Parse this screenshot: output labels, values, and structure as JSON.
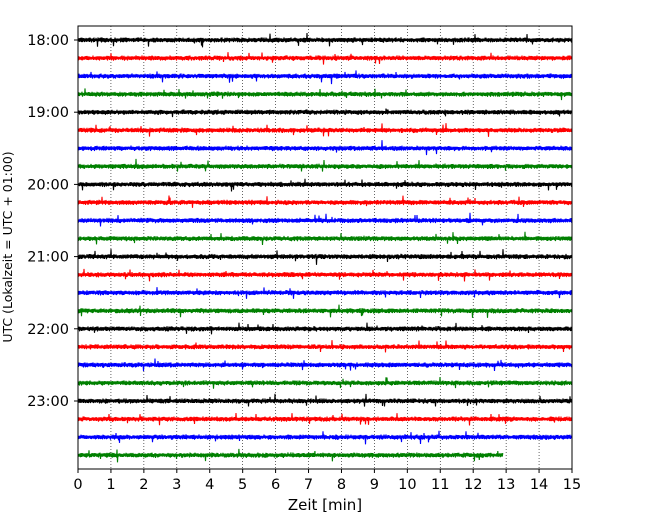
{
  "chart_data": {
    "type": "line",
    "title": "",
    "xlabel": "Zeit  [min]",
    "ylabel": "UTC (Lokalzeit = UTC + 01:00)",
    "xlim": [
      0,
      15
    ],
    "x_ticks": [
      "0",
      "1",
      "2",
      "3",
      "4",
      "5",
      "6",
      "7",
      "8",
      "9",
      "10",
      "11",
      "12",
      "13",
      "14",
      "15"
    ],
    "y_ticks": [
      "18:00",
      "19:00",
      "20:00",
      "21:00",
      "22:00",
      "23:00"
    ],
    "grid": "vertical dotted lines at each minute",
    "legend": "none",
    "colors": [
      "#000000",
      "#ff0000",
      "#0000ff",
      "#008000"
    ],
    "traces": [
      {
        "start": "18:00",
        "color": "#000000",
        "end_min": 15
      },
      {
        "start": "18:15",
        "color": "#ff0000",
        "end_min": 15
      },
      {
        "start": "18:30",
        "color": "#0000ff",
        "end_min": 15
      },
      {
        "start": "18:45",
        "color": "#008000",
        "end_min": 15
      },
      {
        "start": "19:00",
        "color": "#000000",
        "end_min": 15
      },
      {
        "start": "19:15",
        "color": "#ff0000",
        "end_min": 15
      },
      {
        "start": "19:30",
        "color": "#0000ff",
        "end_min": 15
      },
      {
        "start": "19:45",
        "color": "#008000",
        "end_min": 15
      },
      {
        "start": "20:00",
        "color": "#000000",
        "end_min": 15
      },
      {
        "start": "20:15",
        "color": "#ff0000",
        "end_min": 15
      },
      {
        "start": "20:30",
        "color": "#0000ff",
        "end_min": 15
      },
      {
        "start": "20:45",
        "color": "#008000",
        "end_min": 15
      },
      {
        "start": "21:00",
        "color": "#000000",
        "end_min": 15
      },
      {
        "start": "21:15",
        "color": "#ff0000",
        "end_min": 15
      },
      {
        "start": "21:30",
        "color": "#0000ff",
        "end_min": 15
      },
      {
        "start": "21:45",
        "color": "#008000",
        "end_min": 15
      },
      {
        "start": "22:00",
        "color": "#000000",
        "end_min": 15
      },
      {
        "start": "22:15",
        "color": "#ff0000",
        "end_min": 15
      },
      {
        "start": "22:30",
        "color": "#0000ff",
        "end_min": 15
      },
      {
        "start": "22:45",
        "color": "#008000",
        "end_min": 15
      },
      {
        "start": "23:00",
        "color": "#000000",
        "end_min": 15
      },
      {
        "start": "23:15",
        "color": "#ff0000",
        "end_min": 15
      },
      {
        "start": "23:30",
        "color": "#0000ff",
        "end_min": 15
      },
      {
        "start": "23:45",
        "color": "#008000",
        "end_min": 12.9
      }
    ]
  }
}
